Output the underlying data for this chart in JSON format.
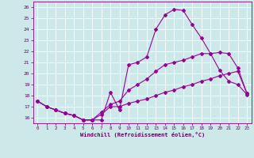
{
  "xlabel": "Windchill (Refroidissement éolien,°C)",
  "xlim": [
    -0.5,
    23.5
  ],
  "ylim": [
    15.5,
    26.5
  ],
  "yticks": [
    16,
    17,
    18,
    19,
    20,
    21,
    22,
    23,
    24,
    25,
    26
  ],
  "xticks": [
    0,
    1,
    2,
    3,
    4,
    5,
    6,
    7,
    8,
    9,
    10,
    11,
    12,
    13,
    14,
    15,
    16,
    17,
    18,
    19,
    20,
    21,
    22,
    23
  ],
  "background_color": "#cde8e8",
  "grid_color": "#b0d4d4",
  "line_color": "#990099",
  "line1_y": [
    17.5,
    17.0,
    16.7,
    16.4,
    16.2,
    15.8,
    15.8,
    15.8,
    18.3,
    16.7,
    20.8,
    21.0,
    21.5,
    24.0,
    25.3,
    25.8,
    25.7,
    24.4,
    23.2,
    21.8,
    20.3,
    19.3,
    19.0,
    18.1
  ],
  "line2_y": [
    17.5,
    17.0,
    16.7,
    16.4,
    16.2,
    15.8,
    15.8,
    16.5,
    17.2,
    17.5,
    18.5,
    19.0,
    19.5,
    20.2,
    20.8,
    21.0,
    21.2,
    21.5,
    21.8,
    21.8,
    21.9,
    21.8,
    20.5,
    18.2
  ],
  "line3_y": [
    17.5,
    17.0,
    16.7,
    16.4,
    16.2,
    15.8,
    15.8,
    16.3,
    17.0,
    17.0,
    17.3,
    17.5,
    17.7,
    18.0,
    18.3,
    18.5,
    18.8,
    19.0,
    19.3,
    19.5,
    19.8,
    20.0,
    20.2,
    18.2
  ]
}
